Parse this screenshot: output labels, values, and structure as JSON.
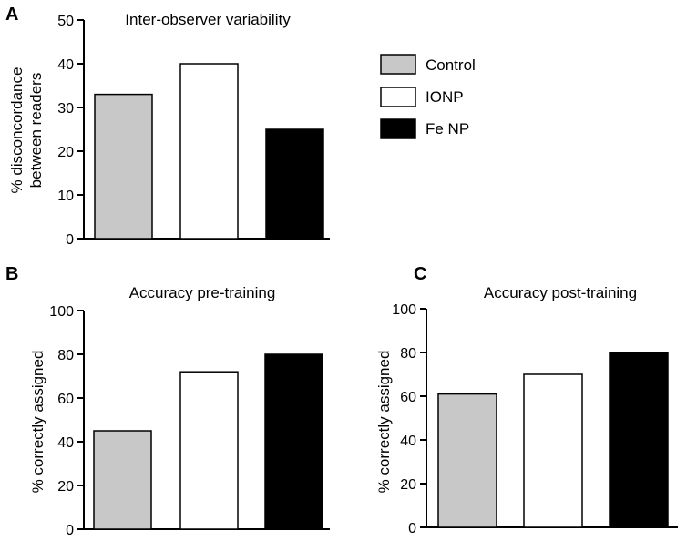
{
  "legend": [
    {
      "label": "Control",
      "color": "#c8c8c8"
    },
    {
      "label": "IONP",
      "color": "#ffffff"
    },
    {
      "label": "Fe NP",
      "color": "#000000"
    }
  ],
  "chart_data": [
    {
      "panel": "A",
      "type": "bar",
      "title": "Inter-observer variability",
      "ylabel_lines": [
        "% disconcordance",
        "between readers"
      ],
      "categories": [
        "Control",
        "IONP",
        "Fe NP"
      ],
      "values": [
        33,
        40,
        25
      ],
      "colors": [
        "#c8c8c8",
        "#ffffff",
        "#000000"
      ],
      "ylim": [
        0,
        50
      ],
      "yticks": [
        0,
        10,
        20,
        30,
        40,
        50
      ]
    },
    {
      "panel": "B",
      "type": "bar",
      "title": "Accuracy pre-training",
      "ylabel_lines": [
        "% correctly assigned"
      ],
      "categories": [
        "Control",
        "IONP",
        "Fe NP"
      ],
      "values": [
        45,
        72,
        80
      ],
      "colors": [
        "#c8c8c8",
        "#ffffff",
        "#000000"
      ],
      "ylim": [
        0,
        100
      ],
      "yticks": [
        0,
        20,
        40,
        60,
        80,
        100
      ]
    },
    {
      "panel": "C",
      "type": "bar",
      "title": "Accuracy post-training",
      "ylabel_lines": [
        "% correctly assigned"
      ],
      "categories": [
        "Control",
        "IONP",
        "Fe NP"
      ],
      "values": [
        61,
        70,
        80
      ],
      "colors": [
        "#c8c8c8",
        "#ffffff",
        "#000000"
      ],
      "ylim": [
        0,
        100
      ],
      "yticks": [
        0,
        20,
        40,
        60,
        80,
        100
      ]
    }
  ]
}
